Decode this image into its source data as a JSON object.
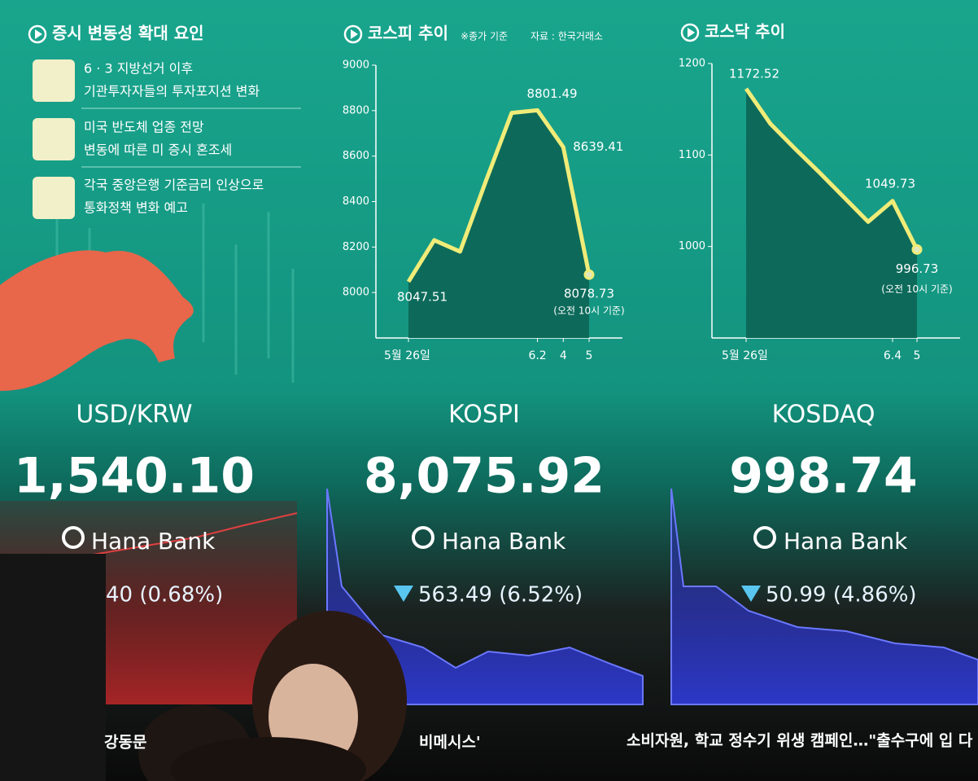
{
  "factors": {
    "title": "증시 변동성 확대 요인",
    "items": [
      {
        "lines": [
          "6 · 3 지방선거 이후",
          "기관투자자들의 투자포지션 변화"
        ]
      },
      {
        "lines": [
          "미국 반도체 업종 전망",
          "변동에 따른 미 증시 혼조세"
        ]
      },
      {
        "lines": [
          "각국 중앙은행 기준금리 인상으로",
          "통화정책 변화 예고"
        ]
      }
    ]
  },
  "chart_data": [
    {
      "type": "line",
      "title": "코스피 추이",
      "subtitle": "※종가 기준",
      "source": "자료 : 한국거래소",
      "categories": [
        "5월 26일",
        null,
        null,
        null,
        null,
        "6.2",
        "4",
        "5"
      ],
      "values": [
        8047.51,
        8230,
        8180,
        8490,
        8790,
        8801.49,
        8639.41,
        8078.73
      ],
      "value_labels": [
        "8047.51",
        null,
        null,
        null,
        null,
        "8801.49",
        "8639.41",
        "8078.73"
      ],
      "annotation": "(오전 10시 기준)",
      "color": "#f0ec78",
      "ylim": [
        7800,
        9000
      ],
      "yticks": [
        8000,
        8200,
        8400,
        8600,
        8800,
        9000
      ]
    },
    {
      "type": "line",
      "title": "코스닥 추이",
      "categories": [
        "5월 26일",
        null,
        null,
        null,
        null,
        null,
        "6.4",
        "5"
      ],
      "values": [
        1172.52,
        1134,
        1107,
        1081,
        1054,
        1027,
        1049.73,
        996.73
      ],
      "value_labels": [
        "1172.52",
        null,
        null,
        null,
        null,
        null,
        "1049.73",
        "996.73"
      ],
      "annotation": "(오전 10시 기준)",
      "color": "#f0ec78",
      "ylim": [
        900,
        1200
      ],
      "yticks": [
        1000,
        1100,
        1200
      ]
    }
  ],
  "board": {
    "panels": [
      {
        "name": "USD/KRW",
        "value": "1,540.10",
        "bank": "Hana Bank",
        "change": "40 (0.68%)"
      },
      {
        "name": "KOSPI",
        "value": "8,075.92",
        "bank": "Hana Bank",
        "change": "563.49 (6.52%)"
      },
      {
        "name": "KOSDAQ",
        "value": "998.74",
        "bank": "Hana Bank",
        "change": "50.99 (4.86%)"
      }
    ],
    "ticker": [
      "강동문",
      "비메시스'",
      "소비자원, 학교 정수기 위생 캠페인…\"출수구에 입 다"
    ]
  }
}
